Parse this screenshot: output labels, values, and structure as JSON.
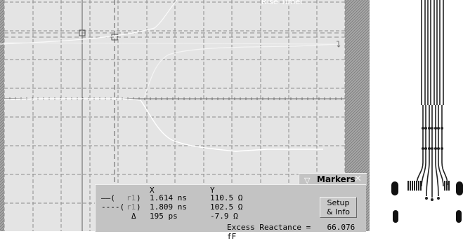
{
  "scope": {
    "rise_time_label": "Rise Time:",
    "colors": {
      "background": "#e4e4e4",
      "grid": "#8d8d8d",
      "trace": "#ffffff",
      "edge_panel": "#9a9a9a"
    }
  },
  "markers": {
    "title": "Markers",
    "collapse_icon": "triangle-down-icon",
    "close_icon": "close-icon",
    "header_x": "X",
    "header_y": "Y",
    "rows": [
      {
        "line_symbol": "——(",
        "ref": "r1",
        "close_paren": ")",
        "x": "1.614 ns",
        "y": "110.5 Ω"
      },
      {
        "line_symbol": "----(",
        "ref": "r1",
        "close_paren": ")",
        "x": "1.809 ns",
        "y": "102.5 Ω"
      }
    ],
    "delta_symbol": "Δ",
    "delta_x": "195 ps",
    "delta_y": "-7.9 Ω",
    "setup_button": "Setup\n& Info",
    "excess_reactance_label": "Excess Reactance =",
    "excess_reactance_value": "66.076 fF"
  }
}
